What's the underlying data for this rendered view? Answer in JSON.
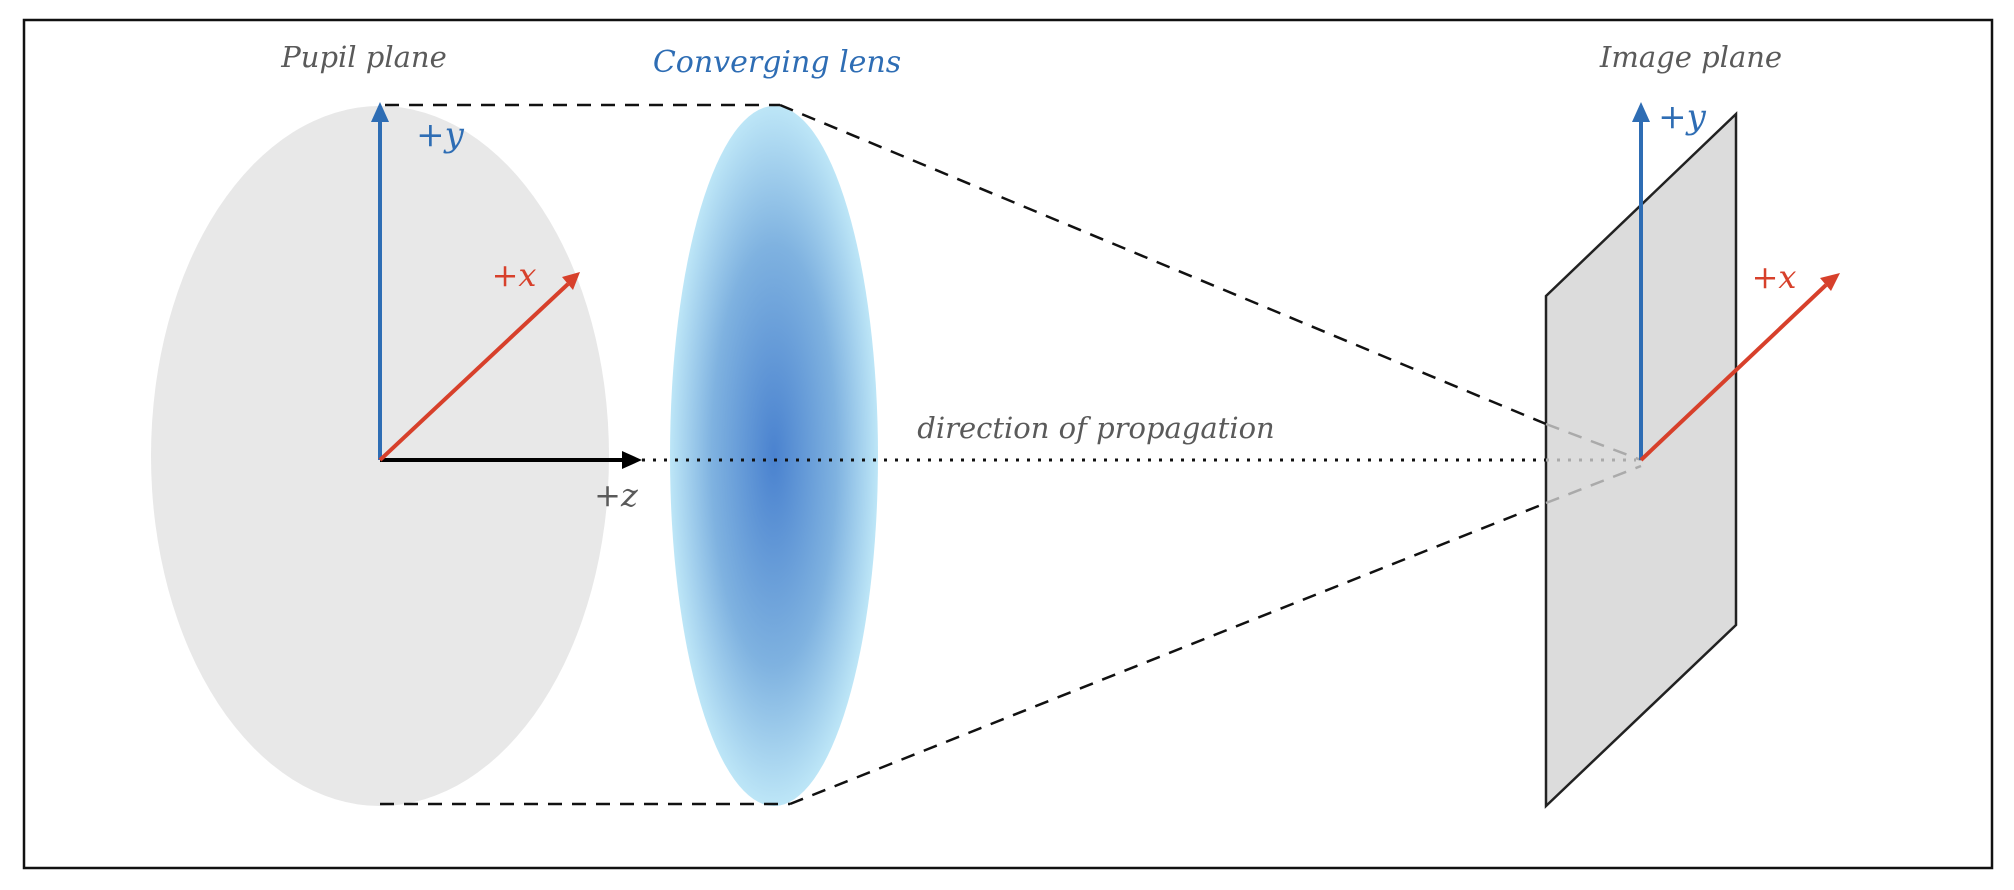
{
  "labels": {
    "pupil_plane": "Pupil plane",
    "converging_lens": "Converging lens",
    "image_plane": "Image plane",
    "direction": "direction of propagation"
  },
  "axes": {
    "pupil": {
      "y": "+y",
      "x": "+x",
      "z": "+z"
    },
    "image": {
      "y": "+y",
      "x": "+x"
    }
  },
  "colors": {
    "y_axis": "#2e6db4",
    "x_axis": "#d7402b",
    "z_axis": "#000000",
    "label_gray": "#5a5a5a",
    "lens_label": "#2e6db4",
    "pupil_fill": "#e8e8e8",
    "image_plane_fill": "#dcdcdc"
  }
}
